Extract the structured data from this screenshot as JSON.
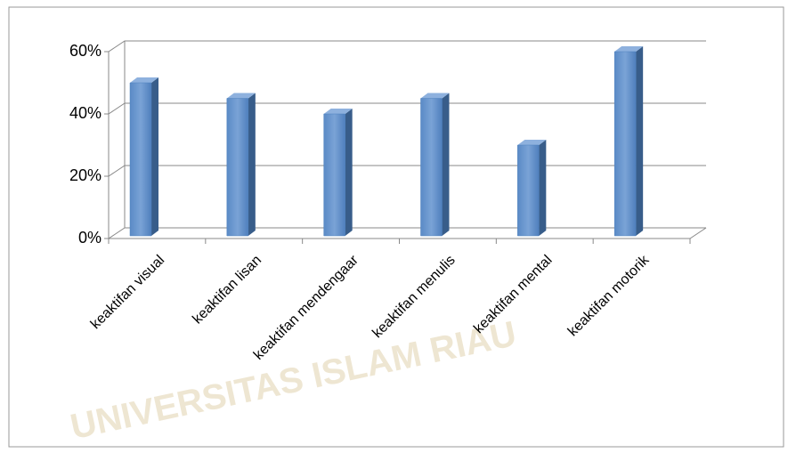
{
  "chart_data": {
    "type": "bar3d",
    "categories": [
      "keaktifan visual",
      "keaktifan lisan",
      "keaktifan mendengaar",
      "keaktifan menulis",
      "keaktifan mental",
      "keaktifan motorik"
    ],
    "values": [
      50,
      45,
      40,
      45,
      30,
      60
    ],
    "color": "#4f81bd",
    "ylim": [
      0,
      60
    ],
    "yticks": [
      {
        "value": 0,
        "label": "0%"
      },
      {
        "value": 20,
        "label": "20%"
      },
      {
        "value": 40,
        "label": "40%"
      },
      {
        "value": 60,
        "label": "60%"
      }
    ],
    "grid": true,
    "watermark": "UNIVERSITAS ISLAM RIAU"
  }
}
